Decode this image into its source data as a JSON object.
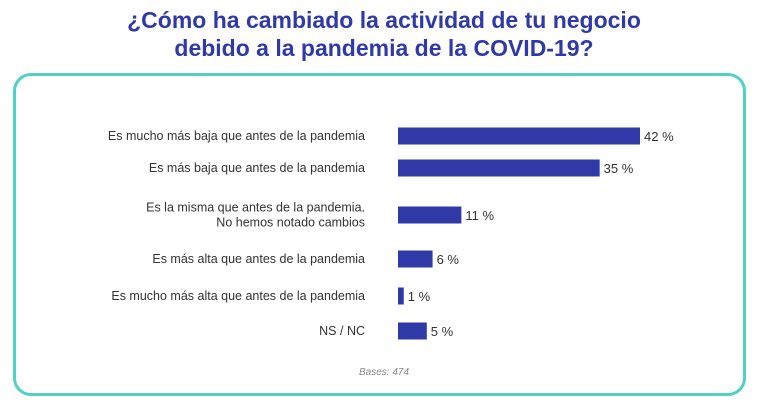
{
  "title": {
    "line1": "¿Cómo ha cambiado la actividad de tu negocio",
    "line2": "debido a la pandemia de la COVID-19?"
  },
  "colors": {
    "title": "#2f3aa8",
    "bar": "#2f3aa8",
    "border": "#4fd1c5",
    "label": "#333333",
    "note": "#8a8a8a"
  },
  "chart_data": {
    "type": "bar",
    "orientation": "horizontal",
    "categories": [
      [
        "Es mucho más baja que antes de la pandemia"
      ],
      [
        "Es más baja que antes de la pandemia"
      ],
      [
        "Es la misma que antes de la pandemia.",
        "No hemos notado cambios"
      ],
      [
        "Es más alta que antes de la pandemia"
      ],
      [
        "Es mucho más alta que antes de la pandemia"
      ],
      [
        "NS / NC"
      ]
    ],
    "values": [
      42,
      35,
      11,
      6,
      1,
      5
    ],
    "value_labels": [
      "42 %",
      "35 %",
      "11 %",
      "6 %",
      "1 %",
      "5 %"
    ],
    "unit": "%",
    "xlim": [
      0,
      42
    ],
    "grid": false,
    "legend": "none"
  },
  "footnote": "Bases: 474"
}
